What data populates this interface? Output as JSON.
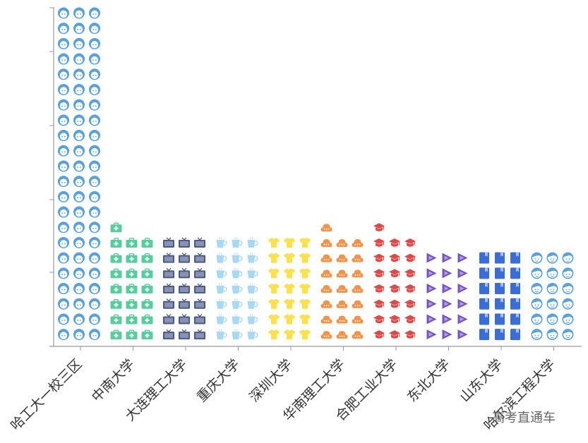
{
  "chart_data": {
    "type": "bar",
    "style": "pictorial",
    "categories": [
      "哈工大一校三区",
      "中南大学",
      "大连理工大学",
      "重庆大学",
      "深圳大学",
      "华南理工大学",
      "合肥工业大学",
      "东北大学",
      "山东大学",
      "哈尔滨工程大学"
    ],
    "values": [
      66,
      22,
      21,
      21,
      21,
      22,
      22,
      18,
      18,
      18
    ],
    "icons_per_row": 3,
    "colors": [
      "#5aa0dd",
      "#58cc9c",
      "#4a5a88",
      "#a9d8f2",
      "#fce04c",
      "#f5934a",
      "#dd4b48",
      "#7654c2",
      "#3a6ed6",
      "#5aa0dd"
    ],
    "icons": [
      "girl-face-icon",
      "first-aid-kit-icon",
      "tv-icon",
      "cup-icon",
      "tshirt-icon",
      "cloud-chat-icon",
      "graduation-cap-icon",
      "play-icon",
      "book-icon",
      "boy-face-icon"
    ],
    "grid": false,
    "legend": "none"
  },
  "watermark": "高考直通车"
}
